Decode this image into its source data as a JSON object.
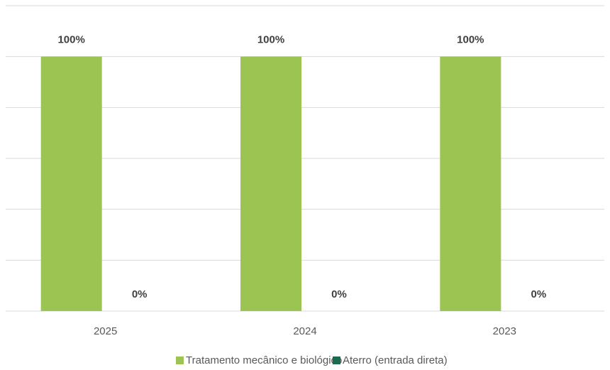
{
  "chart_data": {
    "type": "bar",
    "categories": [
      "2025",
      "2024",
      "2023"
    ],
    "series": [
      {
        "name": "Tratamento mecânico e biológico",
        "color": "#9bc453",
        "values": [
          100,
          100,
          100
        ],
        "value_labels": [
          "100%",
          "100%",
          "100%"
        ]
      },
      {
        "name": "Aterro (entrada direta)",
        "color": "#1a6b4f",
        "values": [
          0,
          0,
          0
        ],
        "value_labels": [
          "0%",
          "0%",
          "0%"
        ]
      }
    ],
    "ylim": [
      0,
      120
    ],
    "yticks": [
      0,
      20,
      40,
      60,
      80,
      100,
      120
    ],
    "grid": true,
    "legend": "bottom"
  }
}
